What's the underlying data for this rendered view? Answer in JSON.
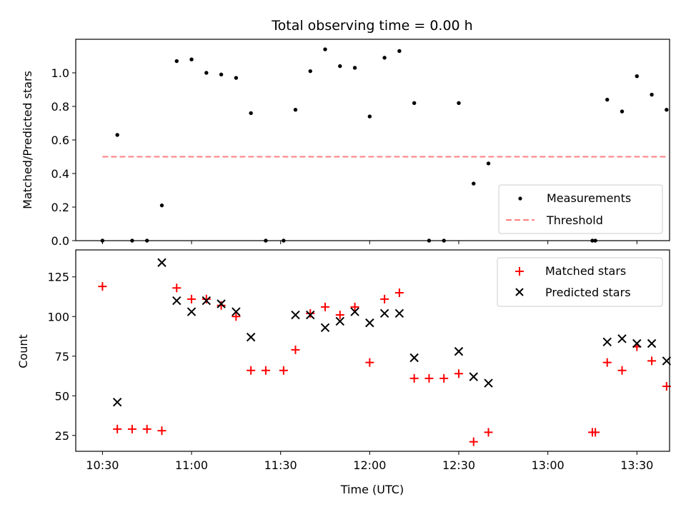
{
  "chart_data": [
    {
      "type": "scatter",
      "title": "Total observing time = 0.00 h",
      "ylabel": "Matched/Predicted stars",
      "xlabel": "",
      "xlim": [
        "10:21",
        "13:41"
      ],
      "ylim": [
        0,
        1.2
      ],
      "x_ticks": [
        "10:30",
        "11:00",
        "11:30",
        "12:00",
        "12:30",
        "13:00",
        "13:30"
      ],
      "y_ticks": [
        "0.0",
        "0.2",
        "0.4",
        "0.6",
        "0.8",
        "1.0"
      ],
      "legend_position": "lower-right",
      "series": [
        {
          "name": "Measurements",
          "color": "#000000",
          "marker": "dot",
          "points": [
            [
              "10:30",
              0.0
            ],
            [
              "10:35",
              0.63
            ],
            [
              "10:40",
              0.0
            ],
            [
              "10:45",
              0.0
            ],
            [
              "10:50",
              0.21
            ],
            [
              "10:55",
              1.07
            ],
            [
              "11:00",
              1.08
            ],
            [
              "11:05",
              1.0
            ],
            [
              "11:10",
              0.99
            ],
            [
              "11:15",
              0.97
            ],
            [
              "11:20",
              0.76
            ],
            [
              "11:25",
              0.0
            ],
            [
              "11:31",
              0.0
            ],
            [
              "11:35",
              0.78
            ],
            [
              "11:40",
              1.01
            ],
            [
              "11:45",
              1.14
            ],
            [
              "11:50",
              1.04
            ],
            [
              "11:55",
              1.03
            ],
            [
              "12:00",
              0.74
            ],
            [
              "12:05",
              1.09
            ],
            [
              "12:10",
              1.13
            ],
            [
              "12:15",
              0.82
            ],
            [
              "12:20",
              0.0
            ],
            [
              "12:25",
              0.0
            ],
            [
              "12:30",
              0.82
            ],
            [
              "12:35",
              0.34
            ],
            [
              "12:40",
              0.46
            ],
            [
              "13:15",
              0.0
            ],
            [
              "13:16",
              0.0
            ],
            [
              "13:20",
              0.84
            ],
            [
              "13:25",
              0.77
            ],
            [
              "13:30",
              0.98
            ],
            [
              "13:35",
              0.87
            ],
            [
              "13:40",
              0.78
            ]
          ]
        },
        {
          "name": "Threshold",
          "color": "#ff8080",
          "style": "dashed",
          "points": [
            [
              "10:30",
              0.5
            ],
            [
              "13:40",
              0.5
            ]
          ]
        }
      ]
    },
    {
      "type": "scatter",
      "title": "",
      "ylabel": "Count",
      "xlabel": "Time (UTC)",
      "xlim": [
        "10:21",
        "13:41"
      ],
      "ylim": [
        15,
        142
      ],
      "x_ticks": [
        "10:30",
        "11:00",
        "11:30",
        "12:00",
        "12:30",
        "13:00",
        "13:30"
      ],
      "y_ticks": [
        "25",
        "50",
        "75",
        "100",
        "125"
      ],
      "legend_position": "upper-right",
      "series": [
        {
          "name": "Matched stars",
          "color": "#ff0000",
          "marker": "plus",
          "points": [
            [
              "10:30",
              119
            ],
            [
              "10:35",
              29
            ],
            [
              "10:40",
              29
            ],
            [
              "10:45",
              29
            ],
            [
              "10:50",
              28
            ],
            [
              "10:55",
              118
            ],
            [
              "11:00",
              111
            ],
            [
              "11:05",
              111
            ],
            [
              "11:10",
              107
            ],
            [
              "11:15",
              100
            ],
            [
              "11:20",
              66
            ],
            [
              "11:25",
              66
            ],
            [
              "11:31",
              66
            ],
            [
              "11:35",
              79
            ],
            [
              "11:40",
              102
            ],
            [
              "11:45",
              106
            ],
            [
              "11:50",
              101
            ],
            [
              "11:55",
              106
            ],
            [
              "12:00",
              71
            ],
            [
              "12:05",
              111
            ],
            [
              "12:10",
              115
            ],
            [
              "12:15",
              61
            ],
            [
              "12:20",
              61
            ],
            [
              "12:25",
              61
            ],
            [
              "12:30",
              64
            ],
            [
              "12:35",
              21
            ],
            [
              "12:40",
              27
            ],
            [
              "13:15",
              27
            ],
            [
              "13:16",
              27
            ],
            [
              "13:20",
              71
            ],
            [
              "13:25",
              66
            ],
            [
              "13:30",
              81
            ],
            [
              "13:35",
              72
            ],
            [
              "13:40",
              56
            ]
          ]
        },
        {
          "name": "Predicted stars",
          "color": "#000000",
          "marker": "x",
          "points": [
            [
              "10:35",
              46
            ],
            [
              "10:50",
              134
            ],
            [
              "10:55",
              110
            ],
            [
              "11:00",
              103
            ],
            [
              "11:05",
              110
            ],
            [
              "11:10",
              108
            ],
            [
              "11:15",
              103
            ],
            [
              "11:20",
              87
            ],
            [
              "11:35",
              101
            ],
            [
              "11:40",
              101
            ],
            [
              "11:45",
              93
            ],
            [
              "11:50",
              97
            ],
            [
              "11:55",
              103
            ],
            [
              "12:00",
              96
            ],
            [
              "12:05",
              102
            ],
            [
              "12:10",
              102
            ],
            [
              "12:15",
              74
            ],
            [
              "12:30",
              78
            ],
            [
              "12:35",
              62
            ],
            [
              "12:40",
              58
            ],
            [
              "13:20",
              84
            ],
            [
              "13:25",
              86
            ],
            [
              "13:30",
              83
            ],
            [
              "13:35",
              83
            ],
            [
              "13:40",
              72
            ]
          ]
        }
      ]
    }
  ]
}
